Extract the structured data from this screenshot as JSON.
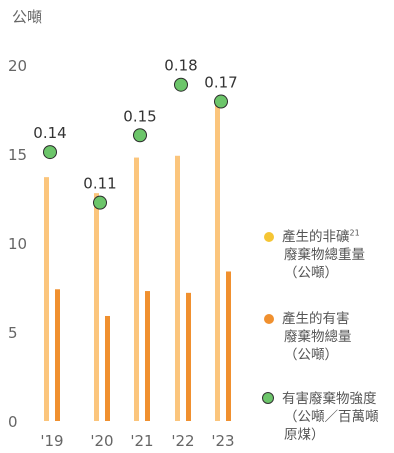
{
  "chart_data": {
    "type": "bar",
    "unit_label": "公噸",
    "categories": [
      "'19",
      "'20",
      "'21",
      "'22",
      "'23"
    ],
    "ylim": [
      0,
      20
    ],
    "yticks": [
      "0",
      "5",
      "10",
      "15",
      "20"
    ],
    "series": [
      {
        "name": "產生的非礦廢棄物總重量（公噸）",
        "values": [
          13.7,
          12.8,
          14.8,
          14.9,
          18.0
        ],
        "color": "#FBC57C"
      },
      {
        "name": "產生的有害廢棄物總量（公噸）",
        "values": [
          7.4,
          5.9,
          7.3,
          7.2,
          8.4
        ],
        "color": "#F0902F"
      }
    ],
    "intensity": {
      "name": "有害廢棄物強度（公噸／百萬噸原煤）",
      "values": [
        0.14,
        0.11,
        0.15,
        0.18,
        0.17
      ],
      "labels": [
        "0.14",
        "0.11",
        "0.15",
        "0.18",
        "0.17"
      ],
      "marker_color": "#6CC56A"
    },
    "legend": {
      "item1": {
        "text": "產生的非礦",
        "sup": "21",
        "line2": "廢棄物總重量",
        "line3": "（公噸）",
        "color": "#F5C534"
      },
      "item2": {
        "line1": "產生的有害",
        "line2": "廢棄物總量",
        "line3": "（公噸）",
        "color": "#F0902F"
      },
      "item3": {
        "line1": "有害廢棄物強度",
        "line2": "（公噸／百萬噸",
        "line3": "原煤）",
        "color": "#6CC56A"
      }
    }
  }
}
